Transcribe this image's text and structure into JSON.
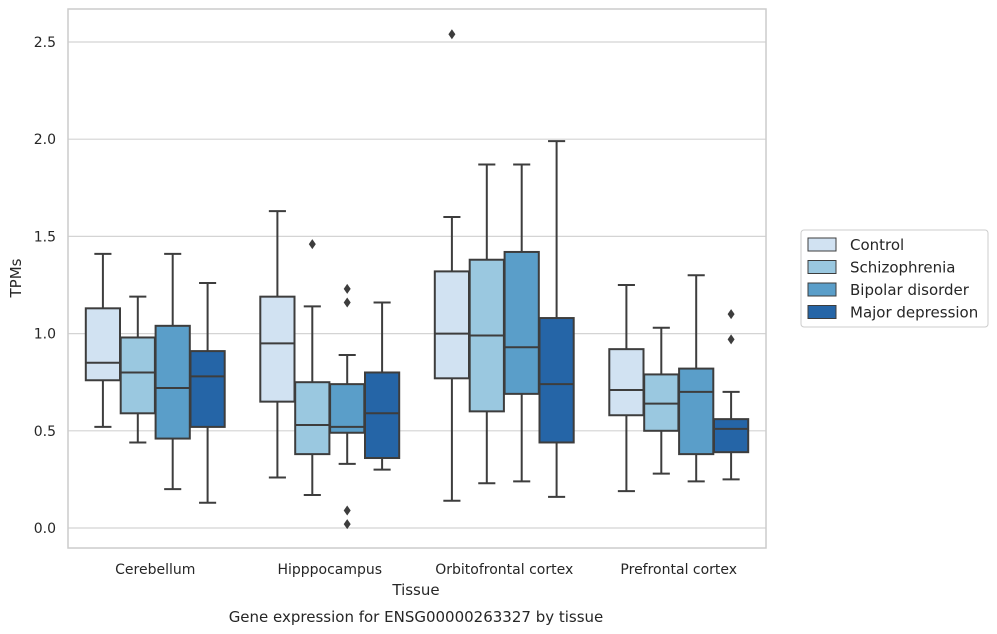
{
  "chart_data": {
    "type": "box",
    "title": "",
    "caption": "Gene expression for ENSG00000263327 by tissue",
    "xlabel": "Tissue",
    "ylabel": "TPMs",
    "ylim": [
      -0.1,
      2.67
    ],
    "yticks": [
      "0.0",
      "0.5",
      "1.0",
      "1.5",
      "2.0",
      "2.5"
    ],
    "ytick_values": [
      0,
      0.5,
      1.0,
      1.5,
      2.0,
      2.5
    ],
    "grid": true,
    "legend_position": "right",
    "categories": [
      "Cerebellum",
      "Hipppocampus",
      "Orbitofrontal cortex",
      "Prefrontal cortex"
    ],
    "series": [
      {
        "name": "Control",
        "color": "#d1e2f2",
        "boxes": [
          {
            "whisker_low": 0.52,
            "q1": 0.76,
            "median": 0.85,
            "q3": 1.13,
            "whisker_high": 1.41,
            "outliers": []
          },
          {
            "whisker_low": 0.26,
            "q1": 0.65,
            "median": 0.95,
            "q3": 1.19,
            "whisker_high": 1.63,
            "outliers": []
          },
          {
            "whisker_low": 0.14,
            "q1": 0.77,
            "median": 1.0,
            "q3": 1.32,
            "whisker_high": 1.6,
            "outliers": [
              2.54
            ]
          },
          {
            "whisker_low": 0.19,
            "q1": 0.58,
            "median": 0.71,
            "q3": 0.92,
            "whisker_high": 1.25,
            "outliers": []
          }
        ]
      },
      {
        "name": "Schizophrenia",
        "color": "#9ac8e0",
        "boxes": [
          {
            "whisker_low": 0.44,
            "q1": 0.59,
            "median": 0.8,
            "q3": 0.98,
            "whisker_high": 1.19,
            "outliers": []
          },
          {
            "whisker_low": 0.17,
            "q1": 0.38,
            "median": 0.53,
            "q3": 0.75,
            "whisker_high": 1.14,
            "outliers": [
              1.46
            ]
          },
          {
            "whisker_low": 0.23,
            "q1": 0.6,
            "median": 0.99,
            "q3": 1.38,
            "whisker_high": 1.87,
            "outliers": []
          },
          {
            "whisker_low": 0.28,
            "q1": 0.5,
            "median": 0.64,
            "q3": 0.79,
            "whisker_high": 1.03,
            "outliers": []
          }
        ]
      },
      {
        "name": "Bipolar disorder",
        "color": "#5a9ec9",
        "boxes": [
          {
            "whisker_low": 0.2,
            "q1": 0.46,
            "median": 0.72,
            "q3": 1.04,
            "whisker_high": 1.41,
            "outliers": []
          },
          {
            "whisker_low": 0.33,
            "q1": 0.49,
            "median": 0.52,
            "q3": 0.74,
            "whisker_high": 0.89,
            "outliers": [
              1.23,
              1.16,
              0.09,
              0.02
            ]
          },
          {
            "whisker_low": 0.24,
            "q1": 0.69,
            "median": 0.93,
            "q3": 1.42,
            "whisker_high": 1.87,
            "outliers": []
          },
          {
            "whisker_low": 0.24,
            "q1": 0.38,
            "median": 0.7,
            "q3": 0.82,
            "whisker_high": 1.3,
            "outliers": []
          }
        ]
      },
      {
        "name": "Major depression",
        "color": "#2565a7",
        "boxes": [
          {
            "whisker_low": 0.13,
            "q1": 0.52,
            "median": 0.78,
            "q3": 0.91,
            "whisker_high": 1.26,
            "outliers": []
          },
          {
            "whisker_low": 0.3,
            "q1": 0.36,
            "median": 0.59,
            "q3": 0.8,
            "whisker_high": 1.16,
            "outliers": []
          },
          {
            "whisker_low": 0.16,
            "q1": 0.44,
            "median": 0.74,
            "q3": 1.08,
            "whisker_high": 1.99,
            "outliers": []
          },
          {
            "whisker_low": 0.25,
            "q1": 0.39,
            "median": 0.51,
            "q3": 0.56,
            "whisker_high": 0.7,
            "outliers": [
              1.1,
              0.97
            ]
          }
        ]
      }
    ]
  }
}
